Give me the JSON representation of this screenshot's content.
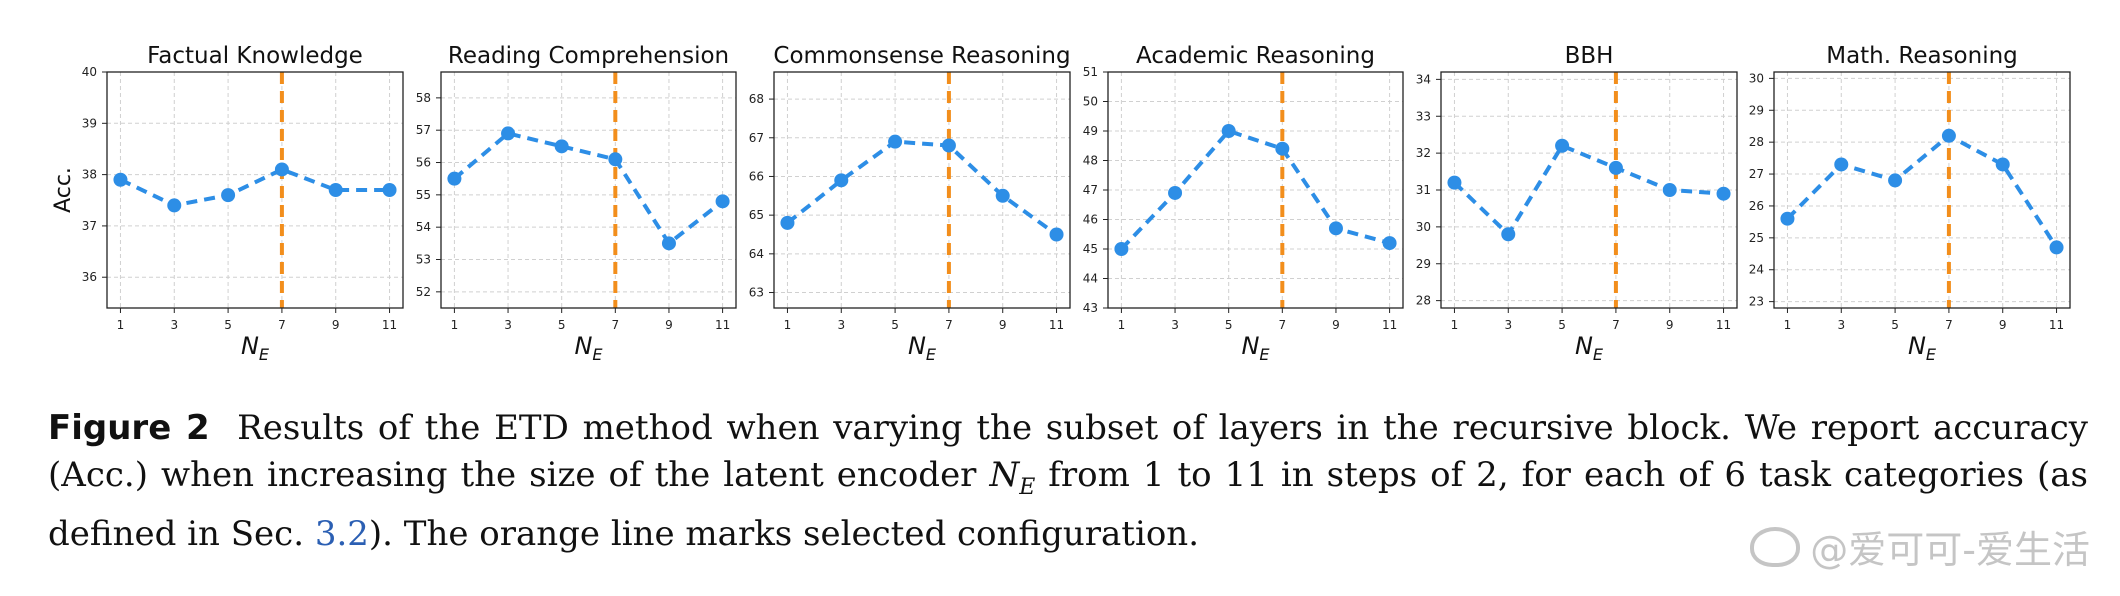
{
  "chart_data": [
    {
      "type": "line",
      "title": "Factual Knowledge",
      "ylabel": "Acc.",
      "xlabel": "N_E",
      "x": [
        1,
        3,
        5,
        7,
        9,
        11
      ],
      "values": [
        37.9,
        37.4,
        37.6,
        38.1,
        37.7,
        37.7
      ],
      "ylim": [
        35.4,
        40.0
      ],
      "yticks": [
        36,
        37,
        38,
        39,
        40
      ],
      "highlight_x": 7
    },
    {
      "type": "line",
      "title": "Reading Comprehension",
      "ylabel": "",
      "xlabel": "N_E",
      "x": [
        1,
        3,
        5,
        7,
        9,
        11
      ],
      "values": [
        55.5,
        56.9,
        56.5,
        56.1,
        53.5,
        54.8
      ],
      "ylim": [
        51.5,
        58.8
      ],
      "yticks": [
        52,
        53,
        54,
        55,
        56,
        57,
        58
      ],
      "highlight_x": 7
    },
    {
      "type": "line",
      "title": "Commonsense Reasoning",
      "ylabel": "",
      "xlabel": "N_E",
      "x": [
        1,
        3,
        5,
        7,
        9,
        11
      ],
      "values": [
        64.8,
        65.9,
        66.9,
        66.8,
        65.5,
        64.5
      ],
      "ylim": [
        62.6,
        68.7
      ],
      "yticks": [
        63,
        64,
        65,
        66,
        67,
        68
      ],
      "highlight_x": 7
    },
    {
      "type": "line",
      "title": "Academic Reasoning",
      "ylabel": "",
      "xlabel": "N_E",
      "x": [
        1,
        3,
        5,
        7,
        9,
        11
      ],
      "values": [
        45.0,
        46.9,
        49.0,
        48.4,
        45.7,
        45.2
      ],
      "ylim": [
        43,
        51
      ],
      "yticks": [
        43,
        44,
        45,
        46,
        47,
        48,
        49,
        50,
        51
      ],
      "highlight_x": 7
    },
    {
      "type": "line",
      "title": "BBH",
      "ylabel": "",
      "xlabel": "N_E",
      "x": [
        1,
        3,
        5,
        7,
        9,
        11
      ],
      "values": [
        31.2,
        29.8,
        32.2,
        31.6,
        31.0,
        30.9
      ],
      "ylim": [
        27.8,
        34.2
      ],
      "yticks": [
        28,
        29,
        30,
        31,
        32,
        33,
        34
      ],
      "highlight_x": 7
    },
    {
      "type": "line",
      "title": "Math. Reasoning",
      "ylabel": "",
      "xlabel": "N_E",
      "x": [
        1,
        3,
        5,
        7,
        9,
        11
      ],
      "values": [
        25.6,
        27.3,
        26.8,
        28.2,
        27.3,
        24.7
      ],
      "ylim": [
        22.8,
        30.2
      ],
      "yticks": [
        23,
        24,
        25,
        26,
        27,
        28,
        29,
        30
      ],
      "highlight_x": 7
    }
  ],
  "colors": {
    "series": "#2d8ee6",
    "highlight": "#f28e1c",
    "grid": "#d0d0d0",
    "axis": "#222222"
  },
  "caption": {
    "label": "Figure 2",
    "text_1": "Results of the ETD method when varying the subset of layers in the recursive block. We report accuracy (Acc.) when increasing the size of the latent encoder ",
    "math_var": "N",
    "math_sub": "E",
    "text_2": " from 1 to 11 in steps of 2, for each of 6 task categories (as defined in Sec. ",
    "ref": "3.2",
    "text_3": "). The orange line marks selected configuration."
  },
  "watermark": "@爱可可-爱生活"
}
